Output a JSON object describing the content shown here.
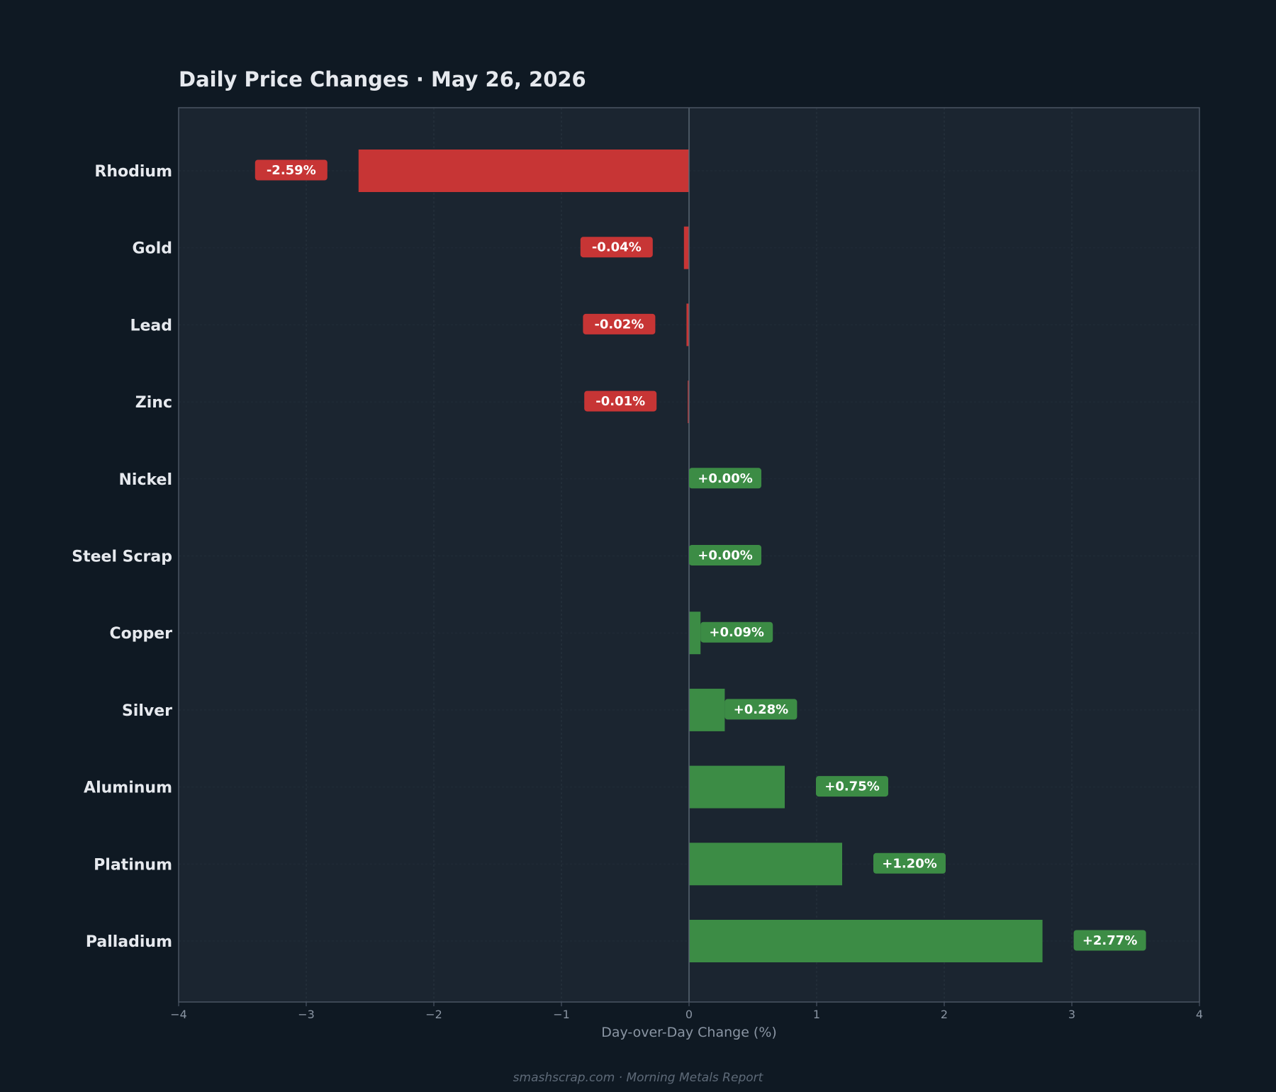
{
  "chart_data": {
    "type": "bar",
    "orientation": "horizontal",
    "title": "Daily Price Changes  ·  May 26, 2026",
    "xlabel": "Day-over-Day Change (%)",
    "ylabel": "",
    "xlim": [
      -4,
      4
    ],
    "xticks": [
      "−4",
      "−3",
      "−2",
      "−1",
      "0",
      "1",
      "2",
      "3",
      "4"
    ],
    "categories": [
      "Rhodium",
      "Gold",
      "Lead",
      "Zinc",
      "Nickel",
      "Steel Scrap",
      "Copper",
      "Silver",
      "Aluminum",
      "Platinum",
      "Palladium"
    ],
    "values": [
      -2.59,
      -0.04,
      -0.02,
      -0.01,
      0.0,
      0.0,
      0.09,
      0.28,
      0.75,
      1.2,
      2.77
    ],
    "data_labels": [
      "-2.59%",
      "-0.04%",
      "-0.02%",
      "-0.01%",
      "+0.00%",
      "+0.00%",
      "+0.09%",
      "+0.28%",
      "+0.75%",
      "+1.20%",
      "+2.77%"
    ],
    "grid": true,
    "legend": "none",
    "colors": {
      "negative": "#c73535",
      "positive": "#3c8c45",
      "background": "#0f1923",
      "plot_background": "#1b2530",
      "axis": "#4a5563",
      "text": "#e6e9ee",
      "muted_text": "#8a95a3"
    }
  },
  "footer": "smashscrap.com  ·  Morning Metals Report"
}
